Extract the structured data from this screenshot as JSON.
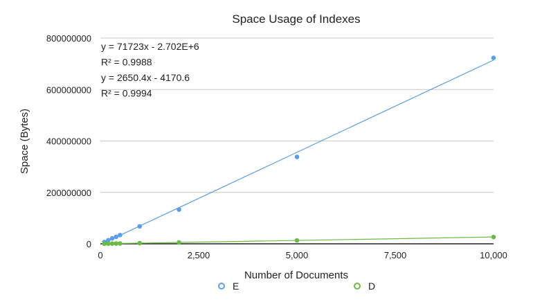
{
  "chart_data": {
    "type": "scatter",
    "title": "Space Usage of Indexes",
    "xlabel": "Number of Documents",
    "ylabel": "Space (Bytes)",
    "xlim": [
      0,
      10000
    ],
    "ylim": [
      0,
      800000000
    ],
    "x_ticks": [
      "0",
      "2,500",
      "5,000",
      "7,500",
      "10,000"
    ],
    "y_ticks": [
      "0",
      "200000000",
      "400000000",
      "600000000",
      "800000000"
    ],
    "x_tick_values": [
      0,
      2500,
      5000,
      7500,
      10000
    ],
    "y_tick_values": [
      0,
      200000000,
      400000000,
      600000000,
      800000000
    ],
    "grid": "horizontal",
    "legend_position": "bottom",
    "series": [
      {
        "name": "E",
        "color": "#5b9ee8",
        "x": [
          100,
          200,
          300,
          400,
          500,
          1000,
          2000,
          5000,
          10000
        ],
        "y": [
          7000000,
          14000000,
          21000000,
          27000000,
          34000000,
          68000000,
          133000000,
          338000000,
          723000000
        ],
        "trendline": {
          "slope": 71723,
          "intercept": -2702000
        }
      },
      {
        "name": "D",
        "color": "#6abb45",
        "x": [
          100,
          200,
          300,
          400,
          500,
          1000,
          2000,
          5000,
          10000
        ],
        "y": [
          260000,
          520000,
          790000,
          1050000,
          1320000,
          2650000,
          5300000,
          13250000,
          26500000
        ],
        "trendline": {
          "slope": 2650.4,
          "intercept": -4170.6
        }
      }
    ],
    "annotations": [
      "y = 71723x - 2.702E+6",
      "R² = 0.9988",
      "y = 2650.4x - 4170.6",
      "R² = 0.9994"
    ]
  }
}
